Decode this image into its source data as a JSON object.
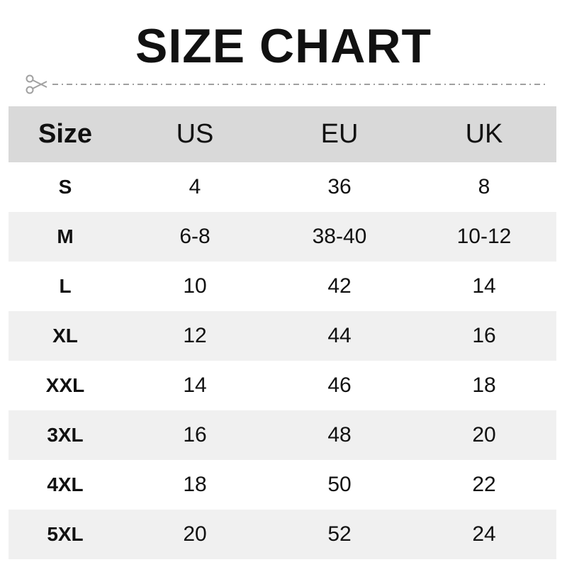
{
  "title": "SIZE CHART",
  "icons": {
    "cut_line": "scissors-icon"
  },
  "colors": {
    "header_bg": "#d9d9d9",
    "alt_row_bg": "#f0f0f0",
    "line": "#a0a0a0"
  },
  "table": {
    "headers": [
      "Size",
      "US",
      "EU",
      "UK"
    ],
    "rows": [
      [
        "S",
        "4",
        "36",
        "8"
      ],
      [
        "M",
        "6-8",
        "38-40",
        "10-12"
      ],
      [
        "L",
        "10",
        "42",
        "14"
      ],
      [
        "XL",
        "12",
        "44",
        "16"
      ],
      [
        "XXL",
        "14",
        "46",
        "18"
      ],
      [
        "3XL",
        "16",
        "48",
        "20"
      ],
      [
        "4XL",
        "18",
        "50",
        "22"
      ],
      [
        "5XL",
        "20",
        "52",
        "24"
      ]
    ]
  }
}
